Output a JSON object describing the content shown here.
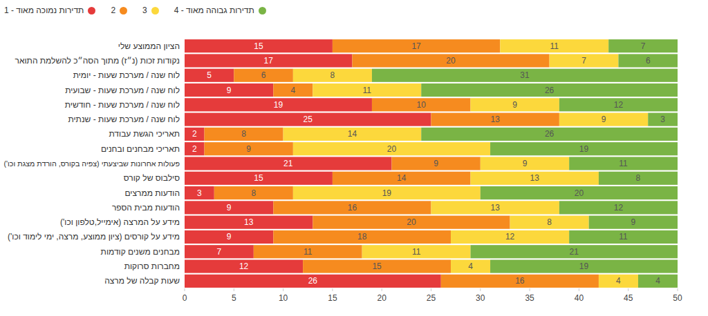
{
  "chart_data": {
    "type": "bar",
    "orientation": "horizontal",
    "stacked": true,
    "data_labels": true,
    "grid": false,
    "legend": "top-left",
    "categories": [
      "הציון הממוצע שלי",
      "נקודות זכות (נ״ז) מתוך הסה״כ להשלמת התואר",
      "לוח שנה / מערכת שעות - יומית",
      "לוח שנה / מערכת שעות - שבועית",
      "לוח שנה / מערכת שעות - חודשית",
      "לוח שנה / מערכת שעות - שנתית",
      "תאריכי הגשת עבודת",
      "תאריכי מבחנים ובחנים",
      "פעולות אחרונות שביצעתי (צפיה בקורס, הורדת מצגת וכו')",
      "סילבוס של קורס",
      "הודעות ממרצים",
      "הודעות מבית הספר",
      "מידע על המרצה (אימייל,טלפון וכו')",
      "מידע על קורסים (ציון ממוצע, מרצה, ימי לימוד וכו')",
      "מבחנים משנים קודמות",
      "מחברות סרוקות",
      "שעות קבלה של מרצה"
    ],
    "series": [
      {
        "name": "תדירות נמוכה מאוד - 1",
        "color": "#e53b3b",
        "values": [
          15,
          17,
          5,
          9,
          19,
          25,
          2,
          2,
          21,
          15,
          3,
          9,
          13,
          9,
          7,
          12,
          26
        ]
      },
      {
        "name": "2",
        "color": "#f68b1f",
        "values": [
          17,
          20,
          6,
          4,
          10,
          13,
          8,
          9,
          9,
          14,
          8,
          16,
          20,
          18,
          11,
          15,
          16
        ]
      },
      {
        "name": "3",
        "color": "#fcd83c",
        "values": [
          11,
          7,
          8,
          11,
          9,
          9,
          14,
          20,
          9,
          13,
          19,
          13,
          8,
          12,
          11,
          4,
          4
        ]
      },
      {
        "name": "תדירות גבוהה מאוד - 4",
        "color": "#7ab445",
        "values": [
          7,
          6,
          31,
          26,
          12,
          3,
          26,
          19,
          11,
          8,
          20,
          12,
          9,
          11,
          21,
          19,
          4
        ]
      }
    ],
    "xlim": [
      0,
      50
    ],
    "xticks": [
      0,
      5,
      10,
      15,
      20,
      25,
      30,
      35,
      40,
      45,
      50
    ]
  }
}
